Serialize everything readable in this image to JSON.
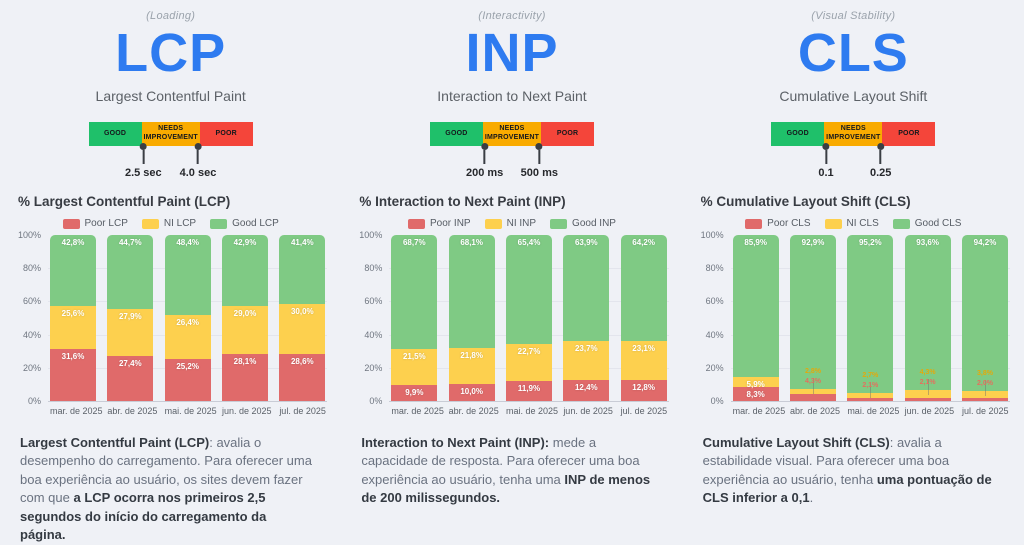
{
  "colors": {
    "accent_blue": "#2e7bf0",
    "scale_good": "#1fc06a",
    "scale_ni": "#f9ab00",
    "scale_poor": "#f4453a",
    "bar_poor": "#e06a6a",
    "bar_ni": "#fdd04e",
    "bar_good": "#7fca84"
  },
  "metrics": [
    {
      "tagline": "(Loading)",
      "acronym": "LCP",
      "full_name": "Largest Contentful Paint",
      "scale": {
        "good_label": "GOOD",
        "ni_label": "NEEDS IMPROVEMENT",
        "poor_label": "POOR",
        "threshold1": "2.5 sec",
        "threshold2": "4.0 sec"
      },
      "description_segments": [
        {
          "text": "Largest Contentful Paint (LCP)",
          "bold": true
        },
        {
          "text": ": avalia o desempenho do carregamento. Para oferecer uma boa experiência ao usuário, os sites devem fazer com que ",
          "bold": false
        },
        {
          "text": "a LCP ocorra nos primeiros 2,5 segundos do início do carregamento da página.",
          "bold": true
        }
      ]
    },
    {
      "tagline": "(Interactivity)",
      "acronym": "INP",
      "full_name": "Interaction to Next Paint",
      "scale": {
        "good_label": "GOOD",
        "ni_label": "NEEDS IMPROVEMENT",
        "poor_label": "POOR",
        "threshold1": "200 ms",
        "threshold2": "500 ms"
      },
      "description_segments": [
        {
          "text": "Interaction to Next Paint (INP):",
          "bold": true
        },
        {
          "text": " mede a capacidade de resposta. Para oferecer uma boa experiência ao usuário, tenha uma ",
          "bold": false
        },
        {
          "text": "INP de menos de 200 milissegundos.",
          "bold": true
        }
      ]
    },
    {
      "tagline": "(Visual Stability)",
      "acronym": "CLS",
      "full_name": "Cumulative Layout Shift",
      "scale": {
        "good_label": "GOOD",
        "ni_label": "NEEDS IMPROVEMENT",
        "poor_label": "POOR",
        "threshold1": "0.1",
        "threshold2": "0.25"
      },
      "description_segments": [
        {
          "text": "Cumulative Layout Shift (CLS)",
          "bold": true
        },
        {
          "text": ": avalia a estabilidade visual. Para oferecer uma boa experiência ao usuário, tenha ",
          "bold": false
        },
        {
          "text": "uma pontuação de CLS inferior a 0,1",
          "bold": true
        },
        {
          "text": ".",
          "bold": false
        }
      ]
    }
  ],
  "chart_data": [
    {
      "type": "bar",
      "stacked": true,
      "title": "% Largest Contentful Paint (LCP)",
      "categories": [
        "mar. de 2025",
        "abr. de 2025",
        "mai. de 2025",
        "jun. de 2025",
        "jul. de 2025"
      ],
      "series": [
        {
          "name": "Poor LCP",
          "role": "poor",
          "values": [
            31.6,
            27.4,
            25.2,
            28.1,
            28.6
          ],
          "labels": [
            "31,6%",
            "27,4%",
            "25,2%",
            "28,1%",
            "28,6%"
          ]
        },
        {
          "name": "NI LCP",
          "role": "ni",
          "values": [
            25.6,
            27.9,
            26.4,
            29.0,
            30.0
          ],
          "labels": [
            "25,6%",
            "27,9%",
            "26,4%",
            "29,0%",
            "30,0%"
          ]
        },
        {
          "name": "Good LCP",
          "role": "good",
          "values": [
            42.8,
            44.7,
            48.4,
            42.9,
            41.4
          ],
          "labels": [
            "42,8%",
            "44,7%",
            "48,4%",
            "42,9%",
            "41,4%"
          ]
        }
      ],
      "y_ticks": [
        "0%",
        "20%",
        "40%",
        "60%",
        "80%",
        "100%"
      ],
      "ylim": [
        0,
        100
      ],
      "legend_position": "top",
      "grid": true
    },
    {
      "type": "bar",
      "stacked": true,
      "title": "% Interaction to Next Paint (INP)",
      "categories": [
        "mar. de 2025",
        "abr. de 2025",
        "mai. de 2025",
        "jun. de 2025",
        "jul. de 2025"
      ],
      "series": [
        {
          "name": "Poor INP",
          "role": "poor",
          "values": [
            9.9,
            10.0,
            11.9,
            12.4,
            12.8
          ],
          "labels": [
            "9,9%",
            "10,0%",
            "11,9%",
            "12,4%",
            "12,8%"
          ]
        },
        {
          "name": "NI INP",
          "role": "ni",
          "values": [
            21.5,
            21.8,
            22.7,
            23.7,
            23.1
          ],
          "labels": [
            "21,5%",
            "21,8%",
            "22,7%",
            "23,7%",
            "23,1%"
          ]
        },
        {
          "name": "Good INP",
          "role": "good",
          "values": [
            68.7,
            68.1,
            65.4,
            63.9,
            64.2
          ],
          "labels": [
            "68,7%",
            "68,1%",
            "65,4%",
            "63,9%",
            "64,2%"
          ]
        }
      ],
      "y_ticks": [
        "0%",
        "20%",
        "40%",
        "60%",
        "80%",
        "100%"
      ],
      "ylim": [
        0,
        100
      ],
      "legend_position": "top",
      "grid": true
    },
    {
      "type": "bar",
      "stacked": true,
      "title": "% Cumulative Layout Shift (CLS)",
      "categories": [
        "mar. de 2025",
        "abr. de 2025",
        "mai. de 2025",
        "jun. de 2025",
        "jul. de 2025"
      ],
      "series": [
        {
          "name": "Poor CLS",
          "role": "poor",
          "values": [
            8.3,
            4.3,
            2.1,
            2.1,
            2.0
          ],
          "labels": [
            "8,3%",
            "4,3%",
            "2,1%",
            "2,1%",
            "2,0%"
          ]
        },
        {
          "name": "NI CLS",
          "role": "ni",
          "values": [
            5.9,
            2.8,
            2.7,
            4.3,
            3.8
          ],
          "labels": [
            "5,9%",
            "2,8%",
            "2,7%",
            "4,3%",
            "3,8%"
          ]
        },
        {
          "name": "Good CLS",
          "role": "good",
          "values": [
            85.9,
            92.9,
            95.2,
            93.6,
            94.2
          ],
          "labels": [
            "85,9%",
            "92,9%",
            "95,2%",
            "93,6%",
            "94,2%"
          ]
        }
      ],
      "y_ticks": [
        "0%",
        "20%",
        "40%",
        "60%",
        "80%",
        "100%"
      ],
      "ylim": [
        0,
        100
      ],
      "legend_position": "top",
      "grid": true
    }
  ]
}
